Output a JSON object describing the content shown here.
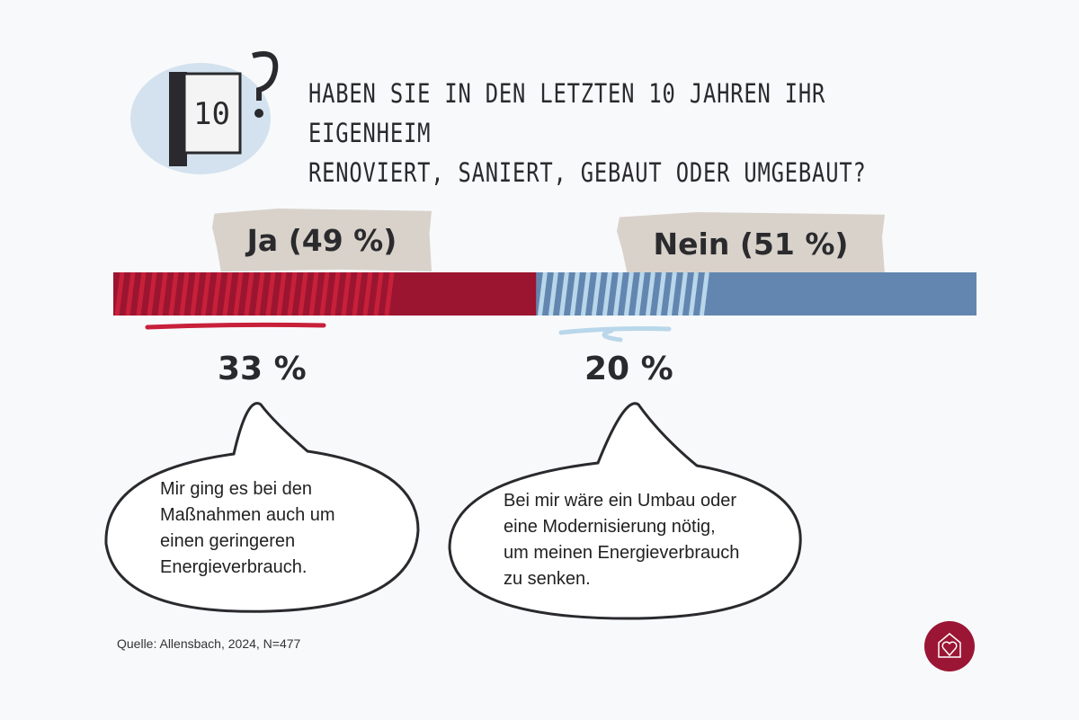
{
  "title_lines": [
    "HABEN SIE IN DEN LETZTEN 10 JAHREN IHR EIGENHEIM",
    "RENOVIERT, SANIERT, GEBAUT ODER UMGEBAUT?"
  ],
  "chart_data": {
    "type": "bar",
    "orientation": "horizontal-stacked",
    "title": "HABEN SIE IN DEN LETZTEN 10 JAHREN IHR EIGENHEIM RENOVIERT, SANIERT, GEBAUT ODER UMGEBAUT?",
    "categories": [
      "Ja",
      "Nein"
    ],
    "labels": [
      "Ja (49 %)",
      "Nein (51 %)"
    ],
    "values": [
      49,
      51
    ],
    "sub_values": [
      33,
      20
    ],
    "sub_labels": [
      "33 %",
      "20 %"
    ],
    "sub_quotes": [
      "Mir ging es bei den Maßnahmen auch um einen geringeren Energieverbrauch.",
      "Bei mir wäre ein Umbau oder eine  Modernisierung nötig, um meinen Energieverbrauch zu senken."
    ],
    "colors": {
      "ja": "#9b1530",
      "ja_highlight": "#c8203a",
      "nein": "#6286b0",
      "nein_highlight": "#b9d7ea"
    }
  },
  "quotes": {
    "ja": [
      "Mir ging es bei den",
      "Maßnahmen auch um",
      "einen geringeren",
      "Energieverbrauch."
    ],
    "nein": [
      "Bei mir wäre ein Umbau oder",
      "eine  Modernisierung nötig,",
      "um meinen Energieverbrauch",
      "zu senken."
    ]
  },
  "source": "Quelle: Allensbach, 2024, N=477",
  "icons": {
    "header": "calendar-question-icon",
    "logo": "house-heart-icon"
  }
}
